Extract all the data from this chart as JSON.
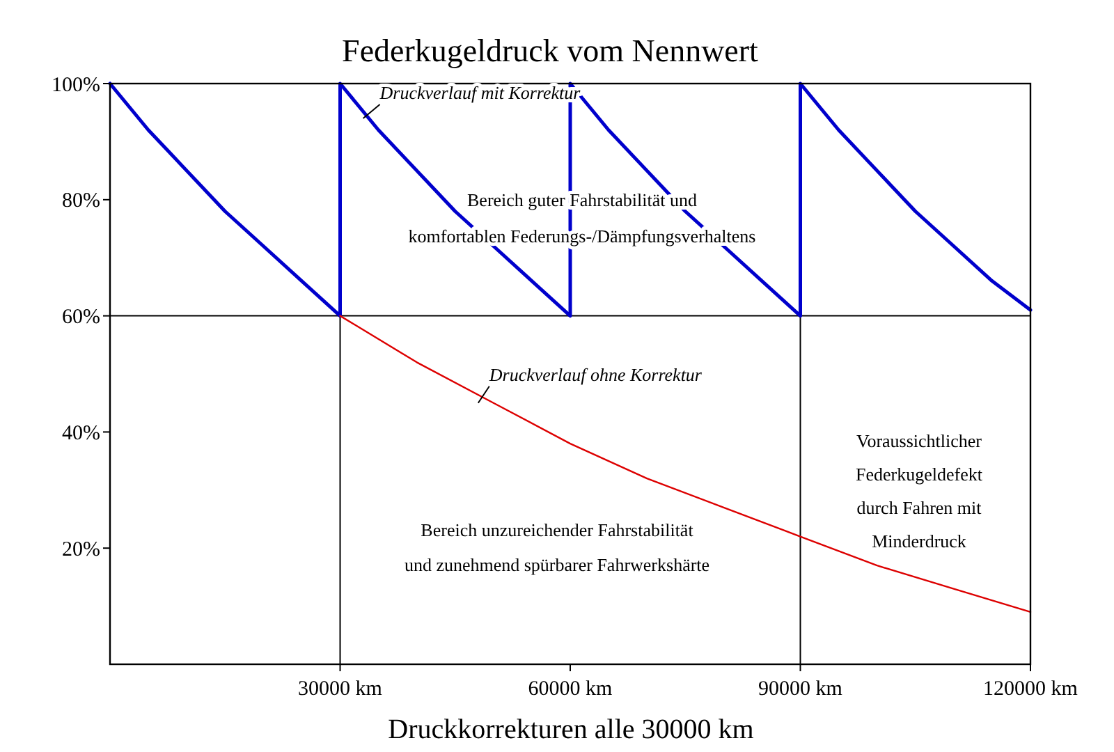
{
  "chart_data": {
    "type": "line",
    "title": "Federkugeldruck vom Nennwert",
    "xlabel": "Druckkorrekturen alle 30000 km",
    "xlim": [
      0,
      120000
    ],
    "ylim": [
      0,
      100
    ],
    "xticks": [
      {
        "value": 30000,
        "label": "30000 km"
      },
      {
        "value": 60000,
        "label": "60000 km"
      },
      {
        "value": 90000,
        "label": "90000 km"
      },
      {
        "value": 120000,
        "label": "120000 km"
      }
    ],
    "yticks": [
      {
        "value": 20,
        "label": "20%"
      },
      {
        "value": 40,
        "label": "40%"
      },
      {
        "value": 60,
        "label": "60%"
      },
      {
        "value": 80,
        "label": "80%"
      },
      {
        "value": 100,
        "label": "100%"
      }
    ],
    "grid": false,
    "marker": "none",
    "line_style": "solid",
    "series": [
      {
        "color": "#0000cc",
        "x": [
          0,
          5000,
          10000,
          15000,
          20000,
          25000,
          30000,
          30000,
          35000,
          40000,
          45000,
          50000,
          55000,
          60000,
          60000,
          65000,
          70000,
          75000,
          80000,
          85000,
          90000,
          90000,
          95000,
          100000,
          105000,
          110000,
          115000,
          120000
        ],
        "values": [
          100,
          92,
          85,
          78,
          72,
          66,
          60,
          100,
          92,
          85,
          78,
          72,
          66,
          60,
          100,
          92,
          85,
          78,
          72,
          66,
          60,
          100,
          92,
          85,
          78,
          72,
          66,
          61
        ]
      },
      {
        "color": "#dd0000",
        "x": [
          30000,
          40000,
          50000,
          60000,
          70000,
          80000,
          90000,
          100000,
          110000,
          120000
        ],
        "values": [
          60,
          52,
          45,
          38,
          32,
          27,
          22,
          17,
          13,
          9
        ]
      }
    ],
    "ref_lines": [
      {
        "axis": "y",
        "value": 60,
        "color": "#000000"
      },
      {
        "axis": "x",
        "value": 30000,
        "color": "#000000"
      },
      {
        "axis": "x",
        "value": 90000,
        "color": "#000000"
      }
    ],
    "annotations": [
      {
        "text": "Druckverlauf mit Korrektur",
        "x": 33000,
        "y": 94
      },
      {
        "text": "Druckverlauf ohne Korrektur",
        "x": 48000,
        "y": 45
      },
      "Bereich guter Fahrstabilität und\nkomfortablen Federungs-/Dämpfungsverhaltens",
      "Bereich unzureichender Fahrstabilität\nund zunehmend spürbarer Fahrwerkshärte",
      "Voraussichtlicher\nFederkugeldefekt\ndurch Fahren mit\nMinderdruck"
    ]
  }
}
